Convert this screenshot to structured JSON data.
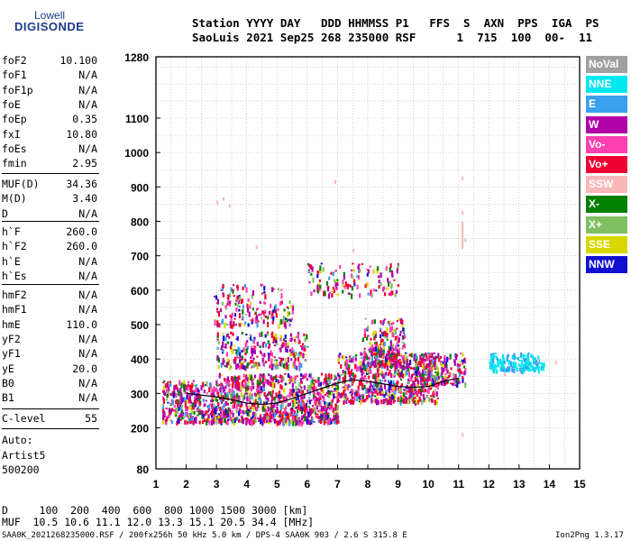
{
  "logo": {
    "line1": "Lowell",
    "line2": "DIGISONDE"
  },
  "header": {
    "line1": "Station YYYY DAY   DDD HHMMSS P1   FFS  S  AXN  PPS  IGA  PS",
    "line2": "SaoLuis 2021 Sep25 268 235000 RSF      1  715  100  00-  11"
  },
  "params_block1": [
    {
      "label": "foF2",
      "value": "10.100"
    },
    {
      "label": "foF1",
      "value": "N/A"
    },
    {
      "label": "foF1p",
      "value": "N/A"
    },
    {
      "label": "foE",
      "value": "N/A"
    },
    {
      "label": "foEp",
      "value": "0.35"
    },
    {
      "label": "fxI",
      "value": "10.80"
    },
    {
      "label": "foEs",
      "value": "N/A"
    },
    {
      "label": "fmin",
      "value": "2.95"
    }
  ],
  "params_block2": [
    {
      "label": "MUF(D)",
      "value": "34.36"
    },
    {
      "label": "M(D)",
      "value": "3.40"
    },
    {
      "label": "D",
      "value": "N/A"
    }
  ],
  "params_block3": [
    {
      "label": "h`F",
      "value": "260.0"
    },
    {
      "label": "h`F2",
      "value": "260.0"
    },
    {
      "label": "h`E",
      "value": "N/A"
    },
    {
      "label": "h`Es",
      "value": "N/A"
    }
  ],
  "params_block4": [
    {
      "label": "hmF2",
      "value": "N/A"
    },
    {
      "label": "hmF1",
      "value": "N/A"
    },
    {
      "label": "hmE",
      "value": "110.0"
    },
    {
      "label": "yF2",
      "value": "N/A"
    },
    {
      "label": "yF1",
      "value": "N/A"
    },
    {
      "label": "yE",
      "value": "20.0"
    },
    {
      "label": "B0",
      "value": "N/A"
    },
    {
      "label": "B1",
      "value": "N/A"
    }
  ],
  "params_block5": [
    {
      "label": "C-level",
      "value": "55"
    }
  ],
  "autoscale": {
    "line1": "Auto:",
    "line2": "Artist5",
    "line3": "500200"
  },
  "legend": [
    {
      "name": "NoVal",
      "color": "#a0a0a0"
    },
    {
      "name": "NNE",
      "color": "#00e8f0"
    },
    {
      "name": "E",
      "color": "#3aa0f0"
    },
    {
      "name": "W",
      "color": "#b000a8"
    },
    {
      "name": "Vo-",
      "color": "#ff40b0"
    },
    {
      "name": "Vo+",
      "color": "#f00030"
    },
    {
      "name": "SSW",
      "color": "#f8b8b8"
    },
    {
      "name": "X-",
      "color": "#008000"
    },
    {
      "name": "X+",
      "color": "#80c060"
    },
    {
      "name": "SSE",
      "color": "#d8d800"
    },
    {
      "name": "NNW",
      "color": "#1010d0"
    }
  ],
  "footer": {
    "d_line": "D     100  200  400  600  800 1000 1500 3000 [km]",
    "muf_line": "MUF  10.5 10.6 11.1 12.0 13.3 15.1 20.5 34.4 [MHz]",
    "info_line": "SAA0K_2021268235000.RSF / 200fx256h 50 kHz 5.0 km / DPS-4 SAA0K 903 / 2.6 S 315.8 E",
    "version": "Ion2Png 1.3.17"
  },
  "chart_data": {
    "type": "scatter",
    "x_ticks": [
      "1",
      "2",
      "3",
      "4",
      "5",
      "6",
      "7",
      "8",
      "9",
      "10",
      "11",
      "12",
      "13",
      "14",
      "15"
    ],
    "y_ticks": [
      "80",
      "200",
      "300",
      "400",
      "500",
      "600",
      "700",
      "800",
      "900",
      "1000",
      "1100",
      "1280"
    ],
    "xlim": [
      1,
      15
    ],
    "ylim": [
      80,
      1280
    ],
    "grid": true,
    "legend_position": "right",
    "trace": {
      "x": [
        2.0,
        2.5,
        3.0,
        3.5,
        4.0,
        4.5,
        5.0,
        5.5,
        6.0,
        6.5,
        7.0,
        7.5,
        8.0,
        8.5,
        9.0,
        9.5,
        10.0,
        10.5,
        11.0
      ],
      "y": [
        300,
        295,
        290,
        282,
        272,
        268,
        272,
        285,
        300,
        315,
        330,
        340,
        335,
        328,
        320,
        318,
        320,
        335,
        345
      ]
    },
    "echo_clusters": [
      {
        "x": [
          1.2,
          3.0
        ],
        "y": [
          220,
          340
        ],
        "n": 340
      },
      {
        "x": [
          3.0,
          7.0
        ],
        "y": [
          220,
          360
        ],
        "n": 950
      },
      {
        "x": [
          7.0,
          10.3
        ],
        "y": [
          280,
          420
        ],
        "n": 650
      },
      {
        "x": [
          7.8,
          9.2
        ],
        "y": [
          380,
          520
        ],
        "n": 240
      },
      {
        "x": [
          9.5,
          11.2
        ],
        "y": [
          330,
          420
        ],
        "n": 200
      },
      {
        "x": [
          3.0,
          6.0
        ],
        "y": [
          380,
          480
        ],
        "n": 280
      },
      {
        "x": [
          2.9,
          5.5
        ],
        "y": [
          500,
          620
        ],
        "n": 180
      },
      {
        "x": [
          6.0,
          9.0
        ],
        "y": [
          590,
          680
        ],
        "n": 130
      },
      {
        "x": [
          12.0,
          13.8
        ],
        "y": [
          370,
          420
        ],
        "n": 160
      }
    ]
  }
}
